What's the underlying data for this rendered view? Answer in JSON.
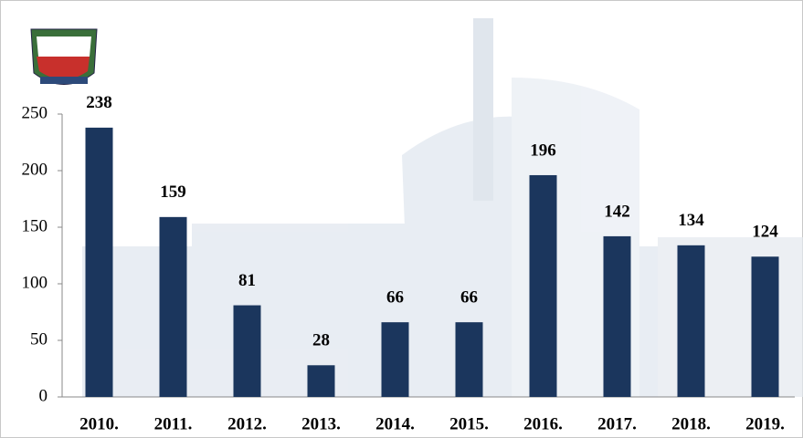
{
  "chart_data": {
    "type": "bar",
    "categories": [
      "2010.",
      "2011.",
      "2012.",
      "2013.",
      "2014.",
      "2015.",
      "2016.",
      "2017.",
      "2018.",
      "2019."
    ],
    "values": [
      238,
      159,
      81,
      28,
      66,
      66,
      196,
      142,
      134,
      124
    ],
    "color": "#1b365d",
    "ylim": [
      0,
      250
    ],
    "yticks": [
      0,
      50,
      100,
      150,
      200,
      250
    ],
    "data_labels": true
  }
}
